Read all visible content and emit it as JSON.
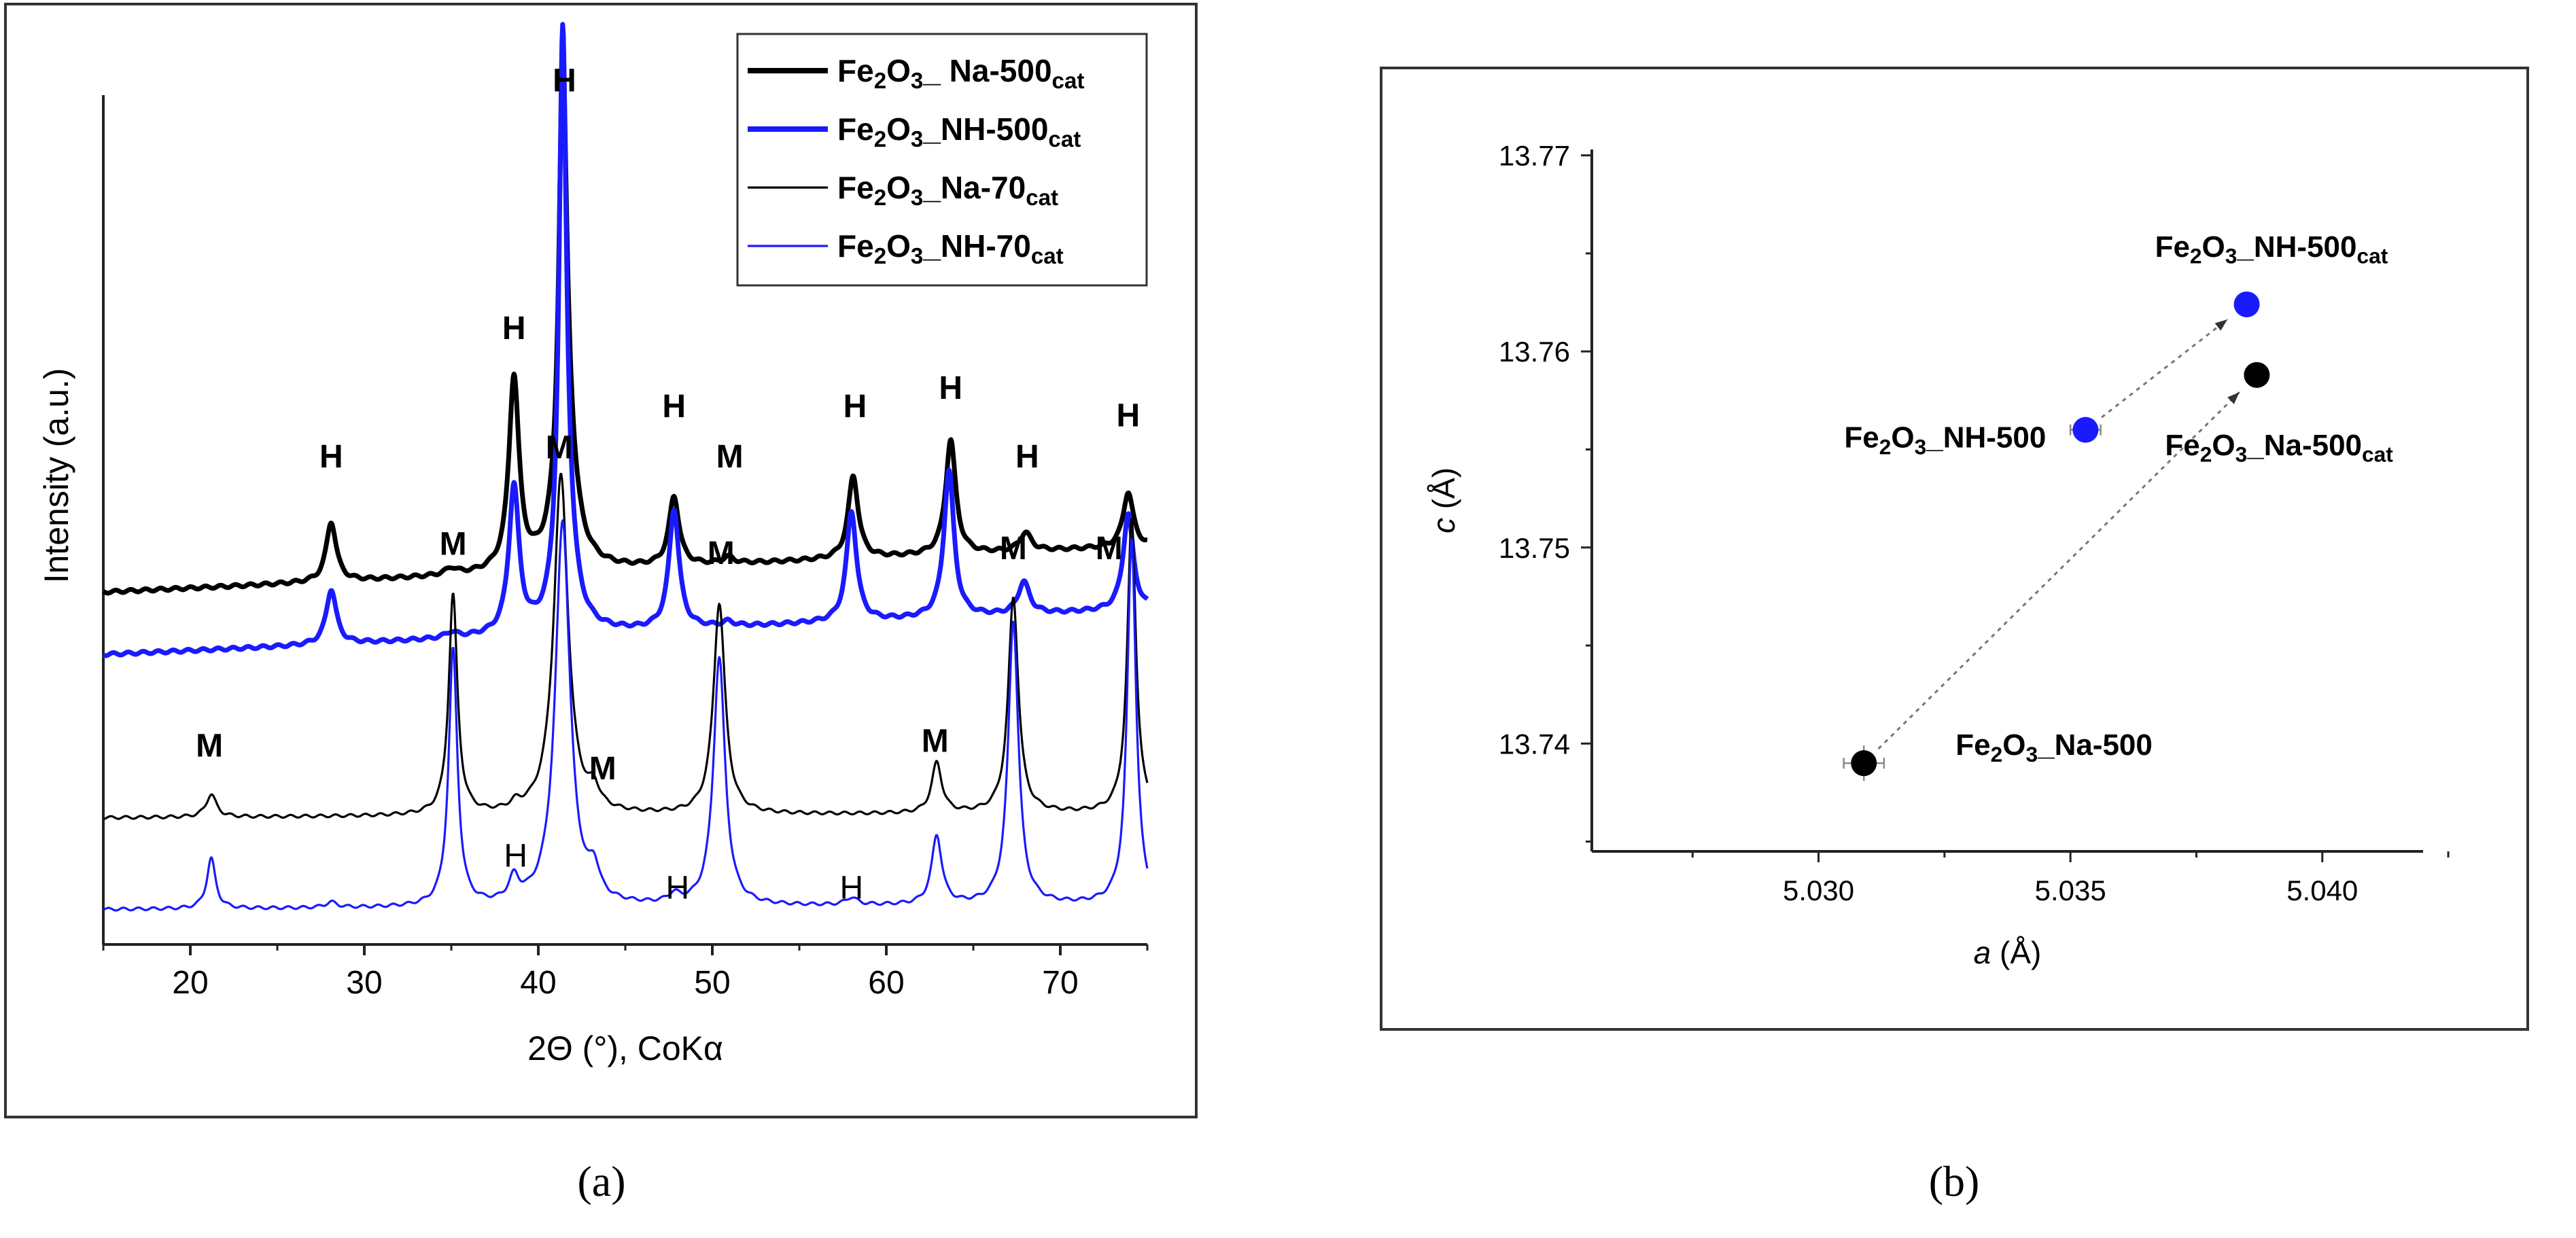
{
  "colors": {
    "black": "#000000",
    "blue": "#1a1aff",
    "frame": "#333333",
    "axis": "#222222",
    "guide": "#777777"
  },
  "panel_labels": [
    "(a)",
    "(b)"
  ],
  "chart_data": [
    {
      "type": "line",
      "title": "",
      "xlabel": "2Θ (°), CoKα",
      "ylabel": "Intensity (a.u.)",
      "xlim": [
        15,
        75
      ],
      "xticks": [
        20,
        30,
        40,
        50,
        60,
        70
      ],
      "ylim": [
        0,
        100
      ],
      "grid": false,
      "legend_position": "top-right",
      "series": [
        {
          "name": "Fe2O3_ Na-500cat",
          "legend": {
            "base": "Fe",
            "sub1": "2",
            "mid": "O",
            "sub2": "3",
            "rest": "_ Na-500",
            "sub3": "cat"
          },
          "color": "#000000",
          "width": "thick",
          "baseline": [
            38.4,
            43.4
          ],
          "peaks": [
            {
              "x": 28.1,
              "h": 6.5,
              "w": 0.35
            },
            {
              "x": 35.0,
              "h": 0.7,
              "w": 0.4
            },
            {
              "x": 38.6,
              "h": 21.0,
              "w": 0.35
            },
            {
              "x": 41.4,
              "h": 43.0,
              "w": 0.25
            },
            {
              "x": 41.6,
              "h": 15.0,
              "w": 0.6
            },
            {
              "x": 47.8,
              "h": 7.5,
              "w": 0.35
            },
            {
              "x": 50.9,
              "h": 0.7,
              "w": 0.4
            },
            {
              "x": 58.1,
              "h": 9.0,
              "w": 0.35
            },
            {
              "x": 63.7,
              "h": 12.5,
              "w": 0.35
            },
            {
              "x": 68.0,
              "h": 2.0,
              "w": 0.4
            },
            {
              "x": 73.9,
              "h": 6.0,
              "w": 0.35
            }
          ]
        },
        {
          "name": "Fe2O3_NH-500cat",
          "legend": {
            "base": "Fe",
            "sub1": "2",
            "mid": "O",
            "sub2": "3",
            "rest": "_NH-500",
            "sub3": "cat"
          },
          "color": "#1a1aff",
          "width": "thick",
          "baseline": [
            31.6,
            36.5
          ],
          "peaks": [
            {
              "x": 28.1,
              "h": 6.0,
              "w": 0.35
            },
            {
              "x": 35.0,
              "h": 0.6,
              "w": 0.4
            },
            {
              "x": 38.6,
              "h": 16.0,
              "w": 0.35
            },
            {
              "x": 41.4,
              "h": 58.0,
              "w": 0.25
            },
            {
              "x": 41.6,
              "h": 9.0,
              "w": 0.6
            },
            {
              "x": 47.8,
              "h": 13.0,
              "w": 0.35
            },
            {
              "x": 50.9,
              "h": 0.5,
              "w": 0.4
            },
            {
              "x": 58.0,
              "h": 12.0,
              "w": 0.35
            },
            {
              "x": 63.6,
              "h": 16.0,
              "w": 0.35
            },
            {
              "x": 67.9,
              "h": 3.5,
              "w": 0.4
            },
            {
              "x": 73.9,
              "h": 10.5,
              "w": 0.35
            }
          ]
        },
        {
          "name": "Fe2O3_Na-70cat",
          "legend": {
            "base": "Fe",
            "sub1": "2",
            "mid": "O",
            "sub2": "3",
            "rest": "_Na-70",
            "sub3": "cat"
          },
          "color": "#000000",
          "width": "thin",
          "baseline": [
            13.8,
            14.3
          ],
          "peaks": [
            {
              "x": 21.2,
              "h": 2.5,
              "w": 0.35
            },
            {
              "x": 35.1,
              "h": 24.0,
              "w": 0.3
            },
            {
              "x": 38.7,
              "h": 0.7,
              "w": 0.35
            },
            {
              "x": 41.3,
              "h": 37.0,
              "w": 0.5
            },
            {
              "x": 43.2,
              "h": 2.0,
              "w": 0.35
            },
            {
              "x": 50.4,
              "h": 23.0,
              "w": 0.4
            },
            {
              "x": 62.9,
              "h": 5.5,
              "w": 0.35
            },
            {
              "x": 67.3,
              "h": 23.5,
              "w": 0.35
            },
            {
              "x": 74.1,
              "h": 32.0,
              "w": 0.3
            }
          ]
        },
        {
          "name": "Fe2O3_NH-70cat",
          "legend": {
            "base": "Fe",
            "sub1": "2",
            "mid": "O",
            "sub2": "3",
            "rest": "_NH-70",
            "sub3": "cat"
          },
          "color": "#1a1aff",
          "width": "thin",
          "baseline": [
            3.8,
            4.3
          ],
          "peaks": [
            {
              "x": 21.2,
              "h": 5.5,
              "w": 0.3
            },
            {
              "x": 28.1,
              "h": 0.6,
              "w": 0.4
            },
            {
              "x": 35.1,
              "h": 28.0,
              "w": 0.3
            },
            {
              "x": 38.6,
              "h": 2.5,
              "w": 0.35
            },
            {
              "x": 41.4,
              "h": 42.0,
              "w": 0.5
            },
            {
              "x": 43.2,
              "h": 3.0,
              "w": 0.35
            },
            {
              "x": 47.8,
              "h": 0.9,
              "w": 0.4
            },
            {
              "x": 50.4,
              "h": 27.0,
              "w": 0.4
            },
            {
              "x": 58.0,
              "h": 0.8,
              "w": 0.4
            },
            {
              "x": 62.9,
              "h": 7.5,
              "w": 0.35
            },
            {
              "x": 67.3,
              "h": 31.0,
              "w": 0.35
            },
            {
              "x": 74.1,
              "h": 40.0,
              "w": 0.3
            }
          ]
        }
      ],
      "annotations": [
        {
          "text": "H",
          "x": 28.1,
          "y": 52.0,
          "weight": "bold"
        },
        {
          "text": "H",
          "x": 38.6,
          "y": 66.0,
          "weight": "bold"
        },
        {
          "text": "H",
          "x": 41.5,
          "y": 93.0,
          "weight": "bold"
        },
        {
          "text": "H",
          "x": 47.8,
          "y": 57.5,
          "weight": "bold"
        },
        {
          "text": "M",
          "x": 51.0,
          "y": 52.0,
          "weight": "bold"
        },
        {
          "text": "H",
          "x": 58.2,
          "y": 57.5,
          "weight": "bold"
        },
        {
          "text": "H",
          "x": 63.7,
          "y": 59.5,
          "weight": "bold"
        },
        {
          "text": "H",
          "x": 68.1,
          "y": 52.0,
          "weight": "bold"
        },
        {
          "text": "H",
          "x": 73.9,
          "y": 56.5,
          "weight": "bold"
        },
        {
          "text": "M",
          "x": 21.1,
          "y": 20.5,
          "weight": "bold"
        },
        {
          "text": "M",
          "x": 35.1,
          "y": 42.5,
          "weight": "bold"
        },
        {
          "text": "M",
          "x": 41.2,
          "y": 53.0,
          "weight": "bold"
        },
        {
          "text": "M",
          "x": 43.7,
          "y": 18.0,
          "weight": "bold"
        },
        {
          "text": "M",
          "x": 50.5,
          "y": 41.5,
          "weight": "bold"
        },
        {
          "text": "M",
          "x": 62.8,
          "y": 21.0,
          "weight": "bold"
        },
        {
          "text": "M",
          "x": 67.3,
          "y": 42.0,
          "weight": "bold"
        },
        {
          "text": "M",
          "x": 72.8,
          "y": 42.0,
          "weight": "bold"
        },
        {
          "text": "H",
          "x": 38.7,
          "y": 8.5,
          "weight": "normal"
        },
        {
          "text": "H",
          "x": 48.0,
          "y": 5.0,
          "weight": "normal"
        },
        {
          "text": "H",
          "x": 58.0,
          "y": 5.0,
          "weight": "normal"
        }
      ]
    },
    {
      "type": "scatter",
      "title": "",
      "xlabel": "a (Å)",
      "ylabel": "c (Å)",
      "xlim": [
        5.0255,
        5.042
      ],
      "ylim": [
        13.7345,
        13.7703
      ],
      "xticks": [
        "5.030",
        "5.035",
        "5.040"
      ],
      "yticks": [
        "13.74",
        "13.75",
        "13.76",
        "13.77"
      ],
      "grid": false,
      "points": [
        {
          "a": 5.0385,
          "c": 13.7624,
          "color": "#1a1aff",
          "xerr": 0.0,
          "yerr": 0.0,
          "label": {
            "base": "Fe",
            "sub1": "2",
            "mid": "O",
            "sub2": "3",
            "rest": "_NH-500",
            "sub3": "cat"
          }
        },
        {
          "a": 5.0353,
          "c": 13.756,
          "color": "#1a1aff",
          "xerr": 0.0003,
          "yerr": 0.0,
          "label": {
            "base": "Fe",
            "sub1": "2",
            "mid": "O",
            "sub2": "3",
            "rest": "_NH-500",
            "sub3": ""
          }
        },
        {
          "a": 5.0387,
          "c": 13.7588,
          "color": "#000000",
          "xerr": 0.0,
          "yerr": 0.0,
          "label": {
            "base": "Fe",
            "sub1": "2",
            "mid": "O",
            "sub2": "3",
            "rest": "_Na-500",
            "sub3": "cat"
          }
        },
        {
          "a": 5.0309,
          "c": 13.739,
          "color": "#000000",
          "xerr": 0.0004,
          "yerr": 0.0009,
          "label": {
            "base": "Fe",
            "sub1": "2",
            "mid": "O",
            "sub2": "3",
            "rest": "_Na-500",
            "sub3": ""
          }
        }
      ],
      "arrows": [
        {
          "from": {
            "a": 5.0353,
            "c": 13.756
          },
          "to": {
            "a": 5.0385,
            "c": 13.7624
          }
        },
        {
          "from": {
            "a": 5.0309,
            "c": 13.739
          },
          "to": {
            "a": 5.0387,
            "c": 13.7588
          }
        }
      ]
    }
  ]
}
